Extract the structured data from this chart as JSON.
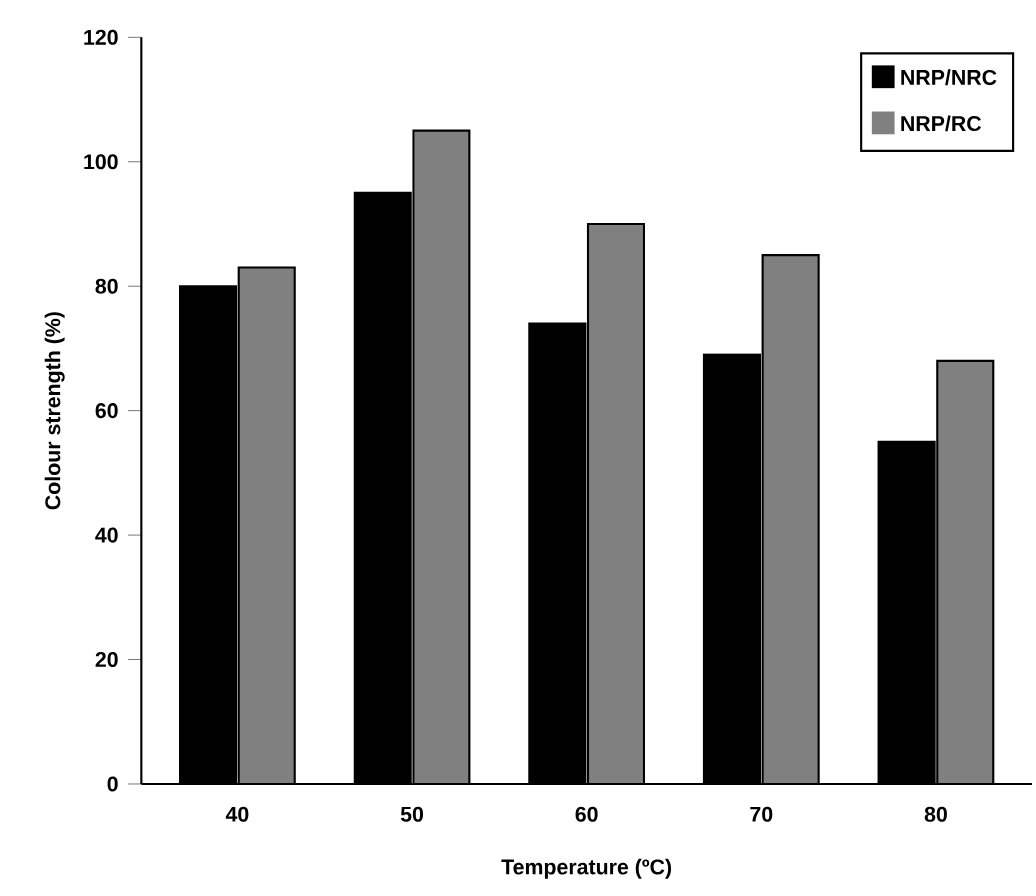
{
  "chart_data": {
    "type": "bar",
    "xlabel": "Temperature (ºC)",
    "ylabel": "Colour strength (%)",
    "categories": [
      "40",
      "50",
      "60",
      "70",
      "80"
    ],
    "series": [
      {
        "name": "NRP/NRC",
        "color": "#000000",
        "values": [
          80,
          95,
          74,
          69,
          55
        ]
      },
      {
        "name": "NRP/RC",
        "color": "#808080",
        "values": [
          83,
          105,
          90,
          85,
          68
        ]
      }
    ],
    "ylim": [
      0,
      120
    ],
    "yticks": [
      0,
      20,
      40,
      60,
      80,
      100,
      120
    ],
    "legend": "top right",
    "grid": false
  }
}
